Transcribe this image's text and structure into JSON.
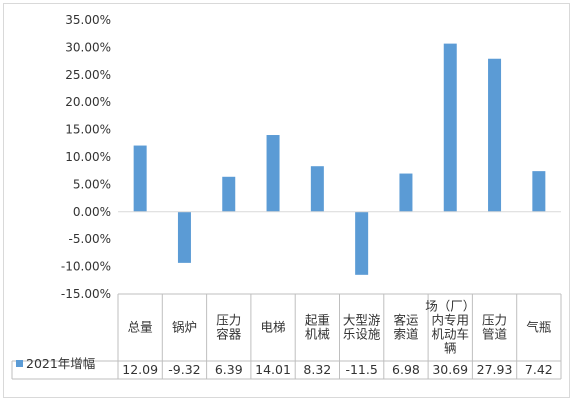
{
  "chart_data": {
    "type": "bar",
    "categories": [
      [
        "总量"
      ],
      [
        "锅炉"
      ],
      [
        "压力",
        "容器"
      ],
      [
        "电梯"
      ],
      [
        "起重",
        "机械"
      ],
      [
        "大型游",
        "乐设施"
      ],
      [
        "客运",
        "索道"
      ],
      [
        "场（厂）",
        "内专用",
        "机动车",
        "辆"
      ],
      [
        "压力",
        "管道"
      ],
      [
        "气瓶"
      ]
    ],
    "series": [
      {
        "name": "2021年增幅",
        "values": [
          12.09,
          -9.32,
          6.39,
          14.01,
          8.32,
          -11.5,
          6.98,
          30.69,
          27.93,
          7.42
        ],
        "table_values": [
          "12.09",
          "-9.32",
          "6.39",
          "14.01",
          "8.32",
          "-11.5",
          "6.98",
          "30.69",
          "27.93",
          "7.42"
        ]
      }
    ],
    "ylim": [
      -15,
      35
    ],
    "yticks": [
      "35.00%",
      "30.00%",
      "25.00%",
      "20.00%",
      "15.00%",
      "10.00%",
      "5.00%",
      "0.00%",
      "-5.00%",
      "-10.00%",
      "-15.00%"
    ],
    "ytick_values": [
      35,
      30,
      25,
      20,
      15,
      10,
      5,
      0,
      -5,
      -10,
      -15
    ],
    "legend": "data-table",
    "grid": false,
    "colors": {
      "bar": "#5b9bd5",
      "table_line": "#bfbfbf",
      "text": "#333333"
    }
  }
}
